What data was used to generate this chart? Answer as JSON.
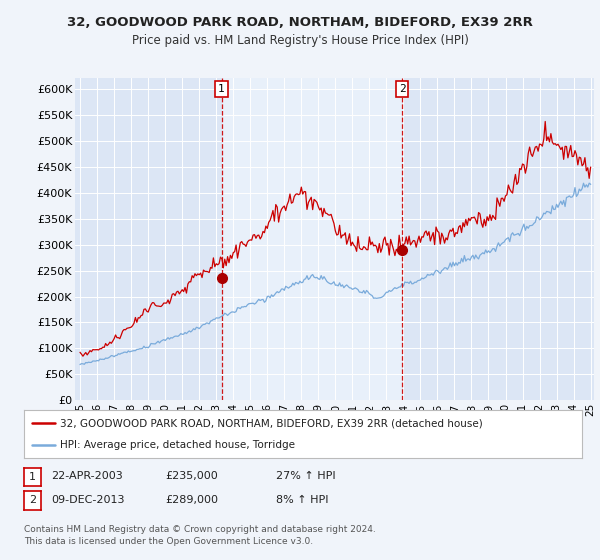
{
  "title": "32, GOODWOOD PARK ROAD, NORTHAM, BIDEFORD, EX39 2RR",
  "subtitle": "Price paid vs. HM Land Registry's House Price Index (HPI)",
  "background_color": "#f0f4fa",
  "plot_bg_color": "#dce6f5",
  "shaded_bg_color": "#dce6f5",
  "grid_color": "#ffffff",
  "legend_line1": "32, GOODWOOD PARK ROAD, NORTHAM, BIDEFORD, EX39 2RR (detached house)",
  "legend_line2": "HPI: Average price, detached house, Torridge",
  "sale1_date": "22-APR-2003",
  "sale1_price": 235000,
  "sale1_hpi": "27% ↑ HPI",
  "sale2_date": "09-DEC-2013",
  "sale2_price": 289000,
  "sale2_hpi": "8% ↑ HPI",
  "footer": "Contains HM Land Registry data © Crown copyright and database right 2024.\nThis data is licensed under the Open Government Licence v3.0.",
  "red_color": "#cc0000",
  "blue_color": "#7aabdb",
  "vline_color": "#cc0000",
  "marker_color": "#aa0000",
  "ylim_min": 0,
  "ylim_max": 620000,
  "yticks": [
    0,
    50000,
    100000,
    150000,
    200000,
    250000,
    300000,
    350000,
    400000,
    450000,
    500000,
    550000,
    600000
  ],
  "sale1_x": 2003.31,
  "sale2_x": 2013.92,
  "xmin": 1995.0,
  "xmax": 2025.0
}
